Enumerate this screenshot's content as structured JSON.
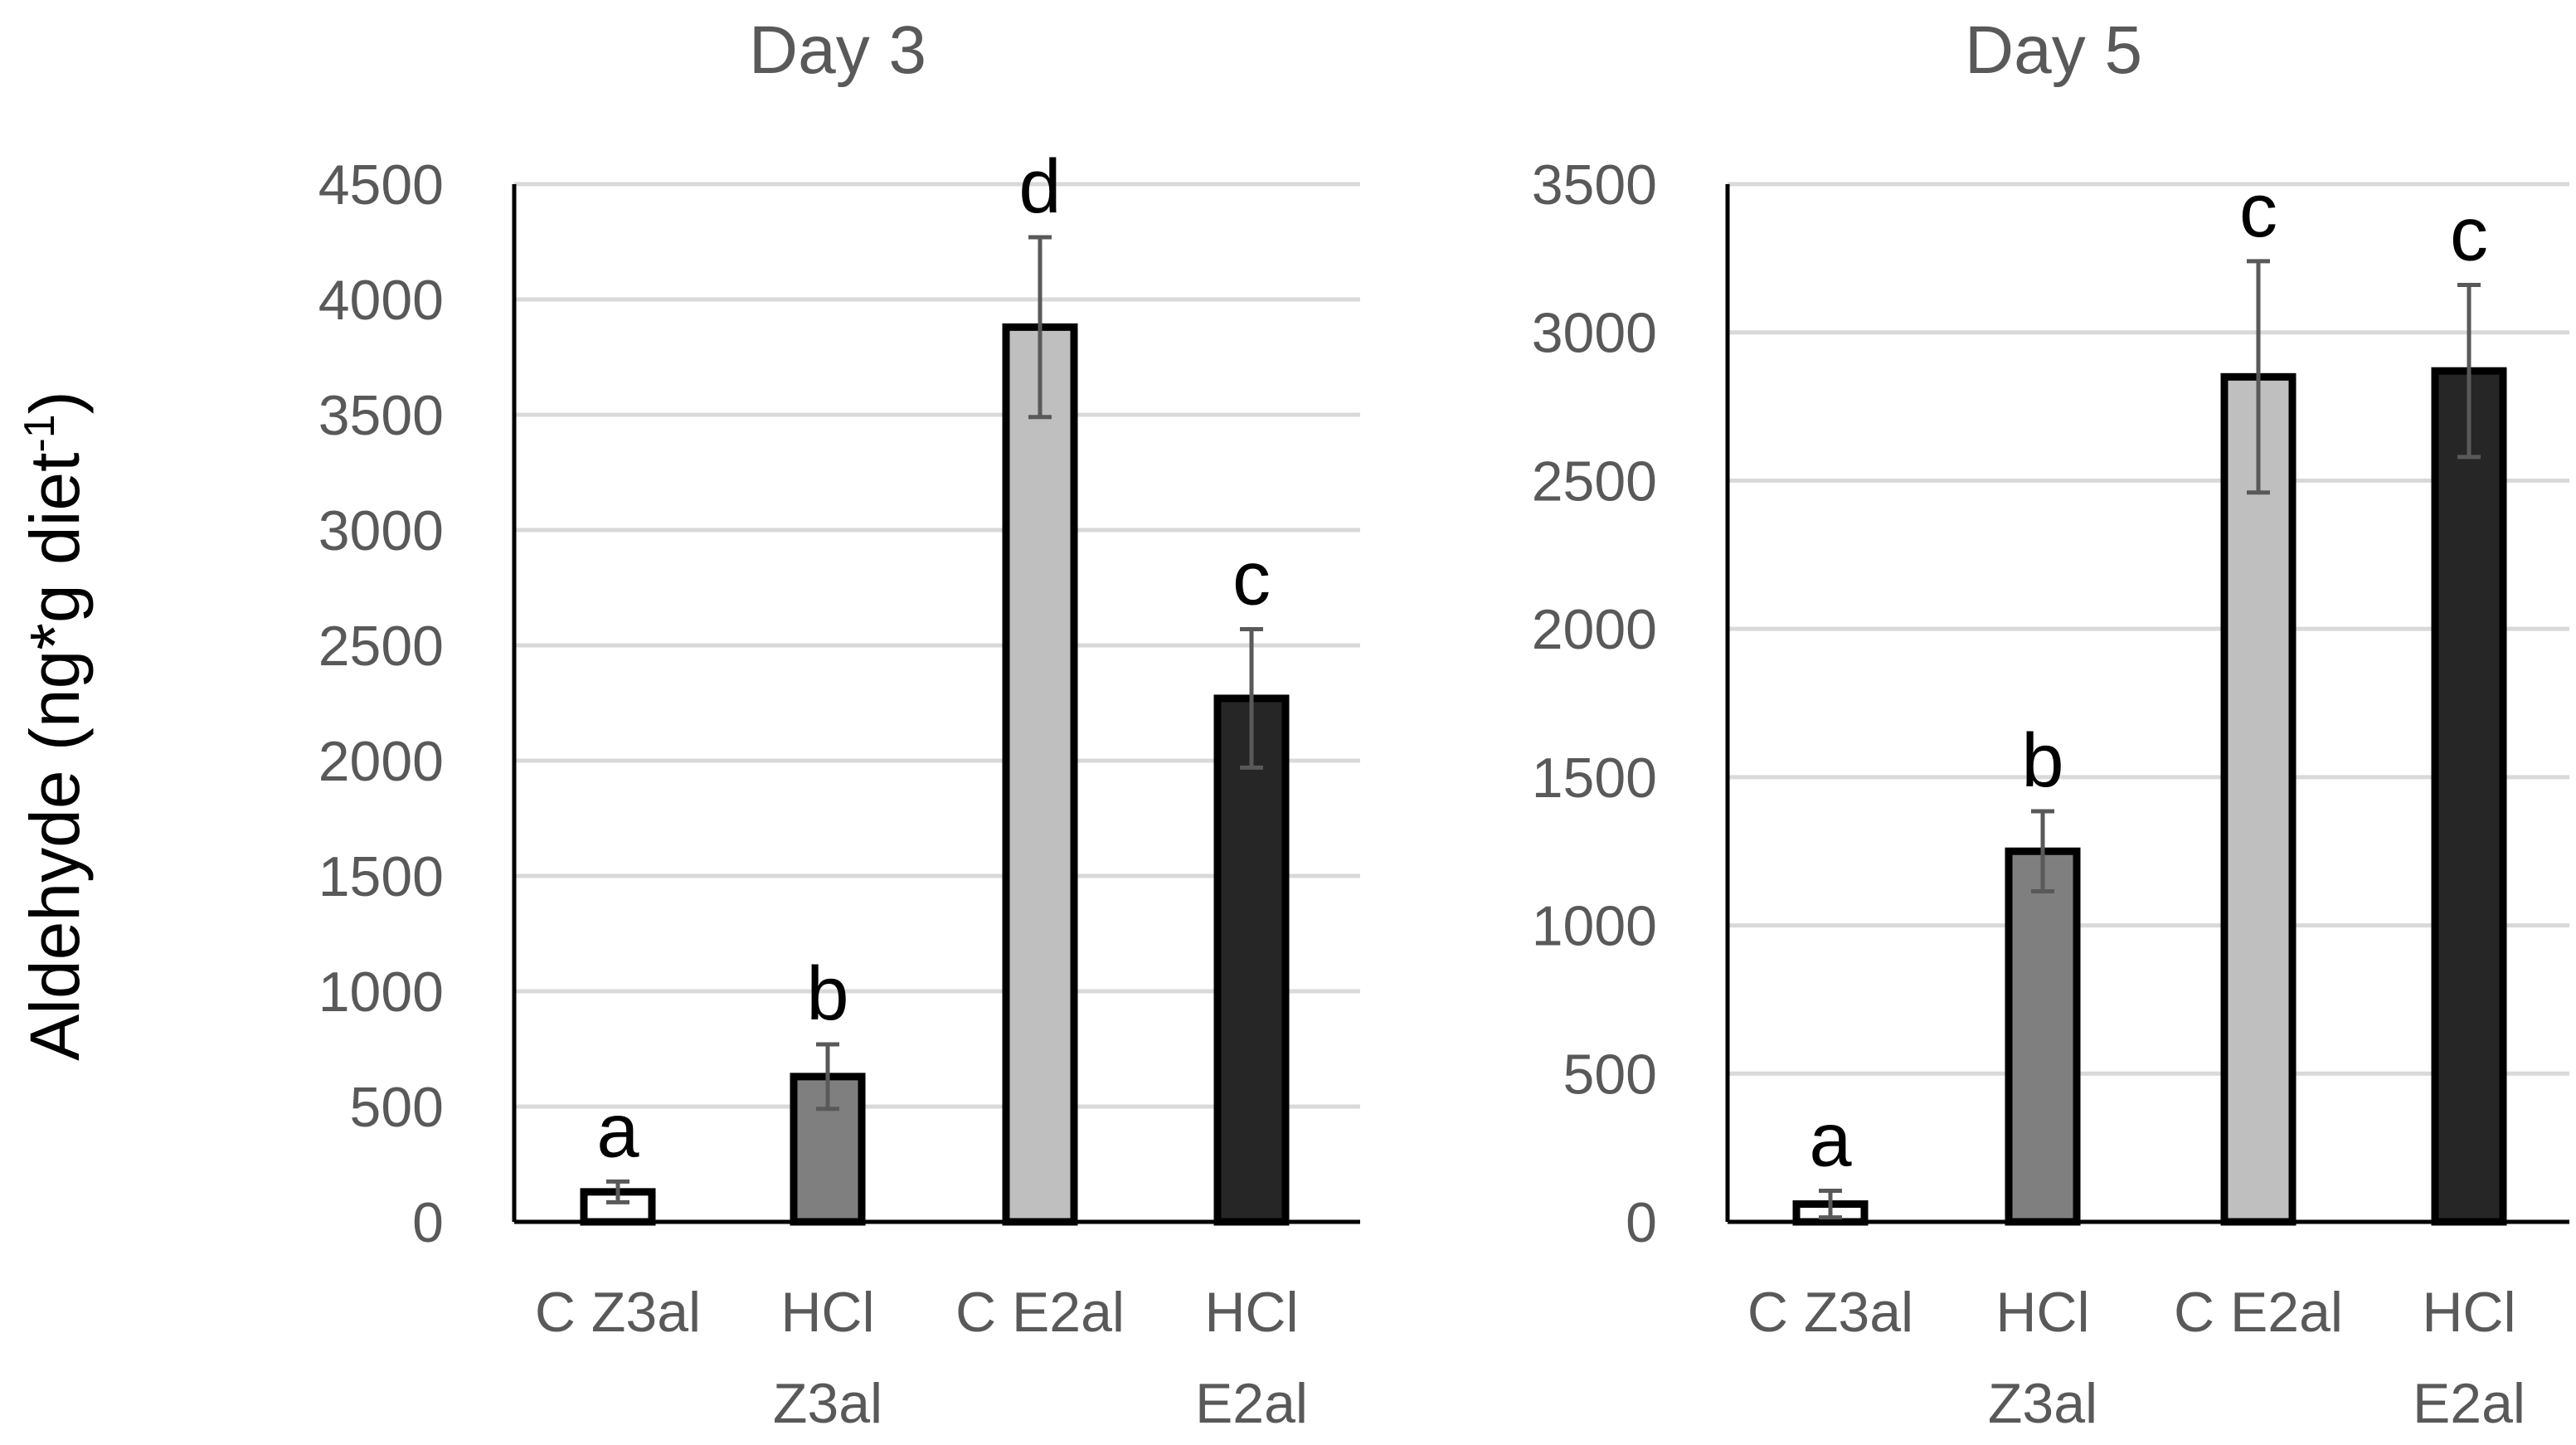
{
  "y_axis_label": "Aldehyde (ng*g diet",
  "y_axis_label_sup": "-1",
  "y_axis_label_close": ")",
  "colors": {
    "C Z3al": "#ffffff",
    "HCl Z3al": "#7f7f7f",
    "C E2al": "#bfbfbf",
    "HCl E2al": "#262626",
    "grid": "#d9d9d9",
    "text": "#595959",
    "error_bar": "#595959"
  },
  "chart_data": [
    {
      "type": "bar",
      "title": "Day 3",
      "xlabel": "",
      "ylabel": "Aldehyde (ng*g diet-1)",
      "ylim": [
        0,
        4500
      ],
      "yticks": [
        0,
        500,
        1000,
        1500,
        2000,
        2500,
        3000,
        3500,
        4000,
        4500
      ],
      "grid": true,
      "categories": [
        [
          "C Z3al"
        ],
        [
          "HCl",
          "Z3al"
        ],
        [
          "C E2al"
        ],
        [
          "HCl",
          "E2al"
        ]
      ],
      "category_keys": [
        "C Z3al",
        "HCl Z3al",
        "C E2al",
        "HCl E2al"
      ],
      "values": [
        130,
        630,
        3880,
        2270
      ],
      "errors": [
        45,
        140,
        390,
        300
      ],
      "letters": [
        "a",
        "b",
        "d",
        "c"
      ]
    },
    {
      "type": "bar",
      "title": "Day 5",
      "xlabel": "",
      "ylabel": "Aldehyde (ng*g diet-1)",
      "ylim": [
        0,
        3500
      ],
      "yticks": [
        0,
        500,
        1000,
        1500,
        2000,
        2500,
        3000,
        3500
      ],
      "grid": true,
      "categories": [
        [
          "C Z3al"
        ],
        [
          "HCl",
          "Z3al"
        ],
        [
          "C E2al"
        ],
        [
          "HCl",
          "E2al"
        ]
      ],
      "category_keys": [
        "C Z3al",
        "HCl Z3al",
        "C E2al",
        "HCl E2al"
      ],
      "values": [
        60,
        1250,
        2850,
        2870
      ],
      "errors": [
        45,
        135,
        390,
        290
      ],
      "letters": [
        "a",
        "b",
        "c",
        "c"
      ]
    }
  ]
}
